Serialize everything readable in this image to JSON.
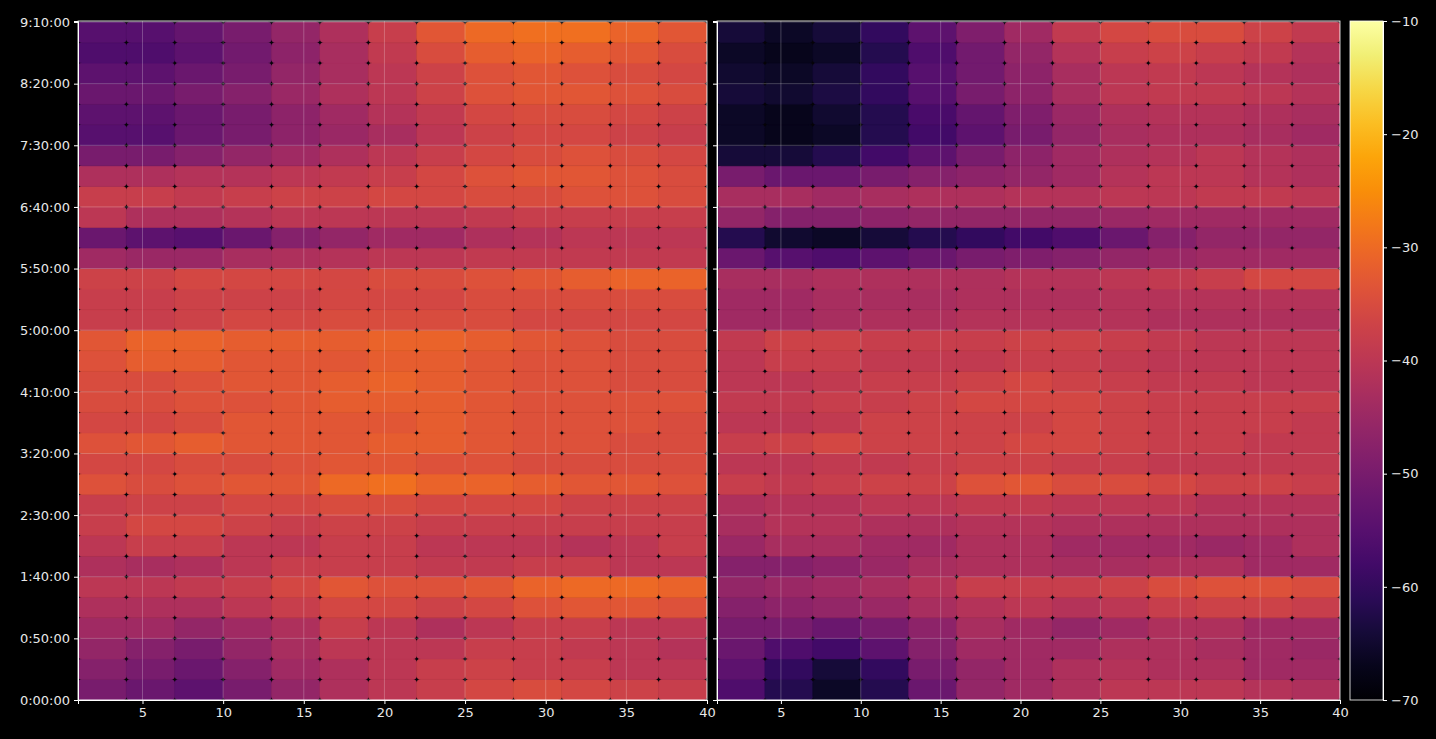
{
  "chart_data": [
    {
      "type": "heatmap",
      "grid": true,
      "tick_labels": true,
      "xlim": [
        1,
        40
      ],
      "ylim": [
        0,
        33050
      ],
      "xticks": [
        5,
        10,
        15,
        20,
        25,
        30,
        35,
        40
      ],
      "yticks": [
        {
          "value": 0,
          "label": "0:00:00"
        },
        {
          "value": 3000,
          "label": "0:50:00"
        },
        {
          "value": 6000,
          "label": "1:40:00"
        },
        {
          "value": 9000,
          "label": "2:30:00"
        },
        {
          "value": 12000,
          "label": "3:20:00"
        },
        {
          "value": 15000,
          "label": "4:10:00"
        },
        {
          "value": 18000,
          "label": "5:00:00"
        },
        {
          "value": 21000,
          "label": "5:50:00"
        },
        {
          "value": 24000,
          "label": "6:40:00"
        },
        {
          "value": 27000,
          "label": "7:30:00"
        },
        {
          "value": 30000,
          "label": "8:20:00"
        },
        {
          "value": 33000,
          "label": "9:10:00"
        }
      ],
      "x": [
        2.5,
        5.5,
        8.5,
        11.5,
        14.5,
        17.5,
        20.5,
        23.5,
        26.5,
        29.5,
        32.5,
        35.5,
        38.5
      ],
      "y": [
        500,
        1500,
        2500,
        3500,
        4500,
        5500,
        6500,
        7500,
        8500,
        9500,
        10500,
        11500,
        12500,
        13500,
        14500,
        15500,
        16500,
        17500,
        18500,
        19500,
        20500,
        21500,
        22500,
        23500,
        24500,
        25500,
        26500,
        27500,
        28500,
        29500,
        30500,
        31500,
        32500
      ],
      "values": [
        [
          -50,
          -52,
          -54,
          -50,
          -46,
          -42,
          -40,
          -38,
          -36,
          -35,
          -36,
          -37,
          -38
        ],
        [
          -48,
          -50,
          -52,
          -48,
          -44,
          -42,
          -40,
          -38,
          -37,
          -38,
          -38,
          -40,
          -40
        ],
        [
          -46,
          -48,
          -50,
          -46,
          -43,
          -40,
          -40,
          -40,
          -38,
          -38,
          -39,
          -40,
          -41
        ],
        [
          -44,
          -44,
          -46,
          -44,
          -42,
          -38,
          -40,
          -42,
          -40,
          -38,
          -38,
          -40,
          -40
        ],
        [
          -42,
          -42,
          -42,
          -40,
          -38,
          -36,
          -36,
          -37,
          -36,
          -34,
          -33,
          -33,
          -34
        ],
        [
          -40,
          -40,
          -39,
          -38,
          -36,
          -33,
          -34,
          -34,
          -33,
          -31,
          -30,
          -30,
          -31
        ],
        [
          -42,
          -43,
          -42,
          -40,
          -38,
          -38,
          -38,
          -39,
          -39,
          -38,
          -38,
          -40,
          -40
        ],
        [
          -40,
          -38,
          -38,
          -40,
          -40,
          -38,
          -38,
          -40,
          -40,
          -40,
          -41,
          -40,
          -38
        ],
        [
          -38,
          -36,
          -36,
          -37,
          -38,
          -37,
          -37,
          -38,
          -38,
          -38,
          -38,
          -38,
          -38
        ],
        [
          -38,
          -37,
          -37,
          -36,
          -36,
          -35,
          -35,
          -36,
          -36,
          -36,
          -37,
          -37,
          -37
        ],
        [
          -34,
          -35,
          -34,
          -33,
          -33,
          -30,
          -29,
          -31,
          -31,
          -32,
          -33,
          -33,
          -34
        ],
        [
          -36,
          -36,
          -35,
          -35,
          -34,
          -33,
          -33,
          -34,
          -34,
          -35,
          -35,
          -35,
          -35
        ],
        [
          -34,
          -33,
          -32,
          -33,
          -33,
          -33,
          -32,
          -32,
          -33,
          -34,
          -34,
          -35,
          -35
        ],
        [
          -36,
          -36,
          -35,
          -33,
          -33,
          -33,
          -33,
          -32,
          -33,
          -34,
          -34,
          -34,
          -35
        ],
        [
          -35,
          -35,
          -34,
          -34,
          -33,
          -32,
          -32,
          -32,
          -33,
          -34,
          -34,
          -34,
          -34
        ],
        [
          -35,
          -35,
          -34,
          -33,
          -33,
          -32,
          -31,
          -32,
          -33,
          -34,
          -34,
          -35,
          -35
        ],
        [
          -34,
          -32,
          -32,
          -33,
          -33,
          -33,
          -32,
          -32,
          -33,
          -34,
          -34,
          -35,
          -35
        ],
        [
          -33,
          -31,
          -31,
          -32,
          -32,
          -32,
          -31,
          -31,
          -32,
          -33,
          -34,
          -35,
          -35
        ],
        [
          -38,
          -38,
          -37,
          -36,
          -36,
          -35,
          -35,
          -35,
          -35,
          -36,
          -36,
          -36,
          -36
        ],
        [
          -38,
          -38,
          -37,
          -37,
          -37,
          -36,
          -36,
          -36,
          -35,
          -35,
          -35,
          -35,
          -35
        ],
        [
          -37,
          -37,
          -36,
          -36,
          -36,
          -36,
          -35,
          -35,
          -34,
          -33,
          -32,
          -31,
          -31
        ],
        [
          -44,
          -45,
          -45,
          -43,
          -42,
          -41,
          -40,
          -40,
          -39,
          -39,
          -39,
          -39,
          -39
        ],
        [
          -52,
          -54,
          -55,
          -52,
          -48,
          -46,
          -44,
          -44,
          -42,
          -41,
          -40,
          -40,
          -40
        ],
        [
          -40,
          -42,
          -42,
          -41,
          -40,
          -40,
          -40,
          -40,
          -39,
          -38,
          -38,
          -38,
          -38
        ],
        [
          -38,
          -38,
          -39,
          -38,
          -37,
          -37,
          -36,
          -36,
          -35,
          -35,
          -34,
          -34,
          -35
        ],
        [
          -42,
          -42,
          -41,
          -41,
          -40,
          -39,
          -38,
          -36,
          -34,
          -33,
          -33,
          -34,
          -35
        ],
        [
          -50,
          -50,
          -48,
          -46,
          -44,
          -42,
          -40,
          -38,
          -36,
          -35,
          -34,
          -35,
          -36
        ],
        [
          -55,
          -55,
          -52,
          -50,
          -47,
          -45,
          -43,
          -40,
          -37,
          -36,
          -36,
          -37,
          -38
        ],
        [
          -54,
          -54,
          -52,
          -50,
          -47,
          -44,
          -41,
          -39,
          -36,
          -35,
          -35,
          -36,
          -37
        ],
        [
          -52,
          -52,
          -50,
          -48,
          -45,
          -42,
          -40,
          -37,
          -34,
          -33,
          -33,
          -34,
          -35
        ],
        [
          -54,
          -54,
          -52,
          -50,
          -46,
          -43,
          -40,
          -37,
          -34,
          -33,
          -34,
          -35,
          -36
        ],
        [
          -56,
          -56,
          -54,
          -51,
          -47,
          -43,
          -39,
          -35,
          -32,
          -31,
          -32,
          -33,
          -35
        ],
        [
          -55,
          -55,
          -53,
          -50,
          -46,
          -42,
          -38,
          -33,
          -30,
          -29,
          -29,
          -31,
          -33
        ]
      ]
    },
    {
      "type": "heatmap",
      "grid": true,
      "tick_labels": "x",
      "xlim": [
        1,
        40
      ],
      "ylim": [
        0,
        33050
      ],
      "xticks": [
        5,
        10,
        15,
        20,
        25,
        30,
        35,
        40
      ],
      "yticks": [
        0,
        3000,
        6000,
        9000,
        12000,
        15000,
        18000,
        21000,
        24000,
        27000,
        30000,
        33000
      ],
      "x": [
        2.5,
        5.5,
        8.5,
        11.5,
        14.5,
        17.5,
        20.5,
        23.5,
        26.5,
        29.5,
        32.5,
        35.5,
        38.5
      ],
      "y": [
        500,
        1500,
        2500,
        3500,
        4500,
        5500,
        6500,
        7500,
        8500,
        9500,
        10500,
        11500,
        12500,
        13500,
        14500,
        15500,
        16500,
        17500,
        18500,
        19500,
        20500,
        21500,
        22500,
        23500,
        24500,
        25500,
        26500,
        27500,
        28500,
        29500,
        30500,
        31500,
        32500
      ],
      "values": [
        [
          -56,
          -62,
          -66,
          -62,
          -52,
          -46,
          -44,
          -42,
          -40,
          -40,
          -40,
          -41,
          -42
        ],
        [
          -54,
          -60,
          -64,
          -60,
          -50,
          -46,
          -44,
          -42,
          -41,
          -42,
          -42,
          -44,
          -44
        ],
        [
          -52,
          -56,
          -58,
          -54,
          -48,
          -44,
          -44,
          -44,
          -42,
          -42,
          -43,
          -44,
          -45
        ],
        [
          -50,
          -50,
          -52,
          -50,
          -47,
          -43,
          -44,
          -46,
          -44,
          -42,
          -42,
          -44,
          -44
        ],
        [
          -48,
          -47,
          -46,
          -45,
          -43,
          -41,
          -40,
          -41,
          -40,
          -38,
          -37,
          -37,
          -38
        ],
        [
          -46,
          -45,
          -44,
          -43,
          -41,
          -38,
          -38,
          -38,
          -37,
          -35,
          -34,
          -34,
          -35
        ],
        [
          -48,
          -48,
          -47,
          -45,
          -43,
          -42,
          -42,
          -43,
          -43,
          -42,
          -42,
          -44,
          -44
        ],
        [
          -45,
          -43,
          -43,
          -44,
          -44,
          -42,
          -42,
          -44,
          -44,
          -44,
          -45,
          -44,
          -42
        ],
        [
          -43,
          -41,
          -41,
          -42,
          -42,
          -41,
          -41,
          -42,
          -42,
          -42,
          -42,
          -42,
          -42
        ],
        [
          -42,
          -41,
          -41,
          -40,
          -40,
          -39,
          -39,
          -40,
          -40,
          -40,
          -41,
          -41,
          -41
        ],
        [
          -38,
          -39,
          -38,
          -37,
          -37,
          -34,
          -33,
          -35,
          -35,
          -36,
          -37,
          -37,
          -38
        ],
        [
          -40,
          -40,
          -39,
          -39,
          -38,
          -37,
          -37,
          -38,
          -38,
          -39,
          -39,
          -39,
          -39
        ],
        [
          -38,
          -37,
          -36,
          -37,
          -37,
          -37,
          -36,
          -36,
          -37,
          -38,
          -38,
          -39,
          -39
        ],
        [
          -40,
          -40,
          -39,
          -37,
          -37,
          -37,
          -37,
          -36,
          -37,
          -38,
          -38,
          -38,
          -39
        ],
        [
          -39,
          -39,
          -38,
          -38,
          -37,
          -36,
          -36,
          -36,
          -37,
          -38,
          -38,
          -38,
          -38
        ],
        [
          -40,
          -40,
          -39,
          -38,
          -38,
          -37,
          -36,
          -37,
          -38,
          -39,
          -39,
          -40,
          -40
        ],
        [
          -40,
          -38,
          -38,
          -39,
          -39,
          -39,
          -38,
          -38,
          -39,
          -40,
          -40,
          -40,
          -40
        ],
        [
          -39,
          -37,
          -37,
          -38,
          -38,
          -38,
          -37,
          -37,
          -38,
          -39,
          -40,
          -40,
          -40
        ],
        [
          -44,
          -44,
          -43,
          -42,
          -42,
          -41,
          -41,
          -41,
          -41,
          -42,
          -42,
          -42,
          -42
        ],
        [
          -44,
          -44,
          -43,
          -43,
          -43,
          -42,
          -42,
          -42,
          -41,
          -41,
          -41,
          -41,
          -41
        ],
        [
          -43,
          -43,
          -42,
          -42,
          -42,
          -42,
          -41,
          -41,
          -40,
          -39,
          -38,
          -36,
          -36
        ],
        [
          -52,
          -55,
          -56,
          -54,
          -52,
          -50,
          -49,
          -48,
          -46,
          -45,
          -44,
          -44,
          -44
        ],
        [
          -62,
          -65,
          -66,
          -64,
          -62,
          -60,
          -58,
          -56,
          -52,
          -48,
          -46,
          -46,
          -46
        ],
        [
          -46,
          -48,
          -48,
          -47,
          -46,
          -46,
          -46,
          -46,
          -45,
          -44,
          -44,
          -44,
          -44
        ],
        [
          -43,
          -43,
          -44,
          -43,
          -42,
          -42,
          -41,
          -41,
          -40,
          -40,
          -39,
          -39,
          -40
        ],
        [
          -50,
          -52,
          -52,
          -50,
          -48,
          -47,
          -46,
          -44,
          -41,
          -40,
          -40,
          -41,
          -42
        ],
        [
          -64,
          -64,
          -62,
          -58,
          -54,
          -50,
          -47,
          -44,
          -42,
          -41,
          -40,
          -41,
          -42
        ],
        [
          -66,
          -67,
          -66,
          -62,
          -58,
          -54,
          -50,
          -46,
          -43,
          -42,
          -42,
          -43,
          -44
        ],
        [
          -66,
          -67,
          -65,
          -62,
          -57,
          -53,
          -49,
          -45,
          -42,
          -41,
          -41,
          -42,
          -43
        ],
        [
          -64,
          -65,
          -63,
          -60,
          -55,
          -50,
          -47,
          -43,
          -40,
          -39,
          -39,
          -40,
          -41
        ],
        [
          -65,
          -66,
          -64,
          -60,
          -55,
          -51,
          -47,
          -43,
          -40,
          -39,
          -40,
          -41,
          -42
        ],
        [
          -66,
          -67,
          -66,
          -62,
          -56,
          -51,
          -46,
          -41,
          -38,
          -37,
          -38,
          -39,
          -41
        ],
        [
          -64,
          -66,
          -64,
          -60,
          -54,
          -49,
          -44,
          -39,
          -36,
          -35,
          -35,
          -37,
          -39
        ]
      ],
      "colorbar": {
        "range": [
          -70,
          -10
        ],
        "ticks": [
          {
            "value": -10,
            "label": "−10"
          },
          {
            "value": -20,
            "label": "−20"
          },
          {
            "value": -30,
            "label": "−30"
          },
          {
            "value": -40,
            "label": "−40"
          },
          {
            "value": -50,
            "label": "−50"
          },
          {
            "value": -60,
            "label": "−60"
          },
          {
            "value": -70,
            "label": "−70"
          }
        ]
      }
    }
  ]
}
